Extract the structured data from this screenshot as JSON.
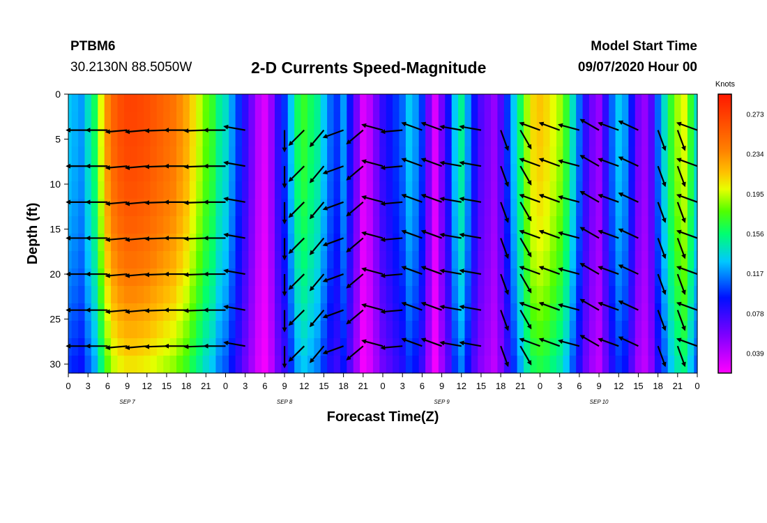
{
  "header": {
    "station": "PTBM6",
    "location": "30.2130N 88.5050W",
    "title": "2-D Currents Speed-Magnitude",
    "model_start_label": "Model Start Time",
    "model_start_value": "09/07/2020 Hour 00"
  },
  "chart_data": {
    "type": "heatmap",
    "title": "2-D Currents Speed-Magnitude",
    "xlabel": "Forecast Time(Z)",
    "ylabel": "Depth (ft)",
    "colorbar_label": "Knots",
    "colorbar_ticks": [
      "0.273",
      "0.234",
      "0.195",
      "0.156",
      "0.117",
      "0.078",
      "0.039"
    ],
    "colorbar_range": [
      0.0195,
      0.2925
    ],
    "x_hours_range": [
      0,
      96
    ],
    "x_tick_labels": [
      "0",
      "3",
      "6",
      "9",
      "12",
      "15",
      "18",
      "21",
      "0",
      "3",
      "6",
      "9",
      "12",
      "15",
      "18",
      "21",
      "0",
      "3",
      "6",
      "9",
      "12",
      "15",
      "18",
      "21",
      "0",
      "3",
      "6",
      "9",
      "12",
      "15",
      "18",
      "21",
      "0"
    ],
    "day_labels": [
      {
        "label": "SEP 7",
        "hour": 9
      },
      {
        "label": "SEP 8",
        "hour": 33
      },
      {
        "label": "SEP 9",
        "hour": 57
      },
      {
        "label": "SEP 10",
        "hour": 81
      }
    ],
    "ylim": [
      0,
      31
    ],
    "y_ticks": [
      0,
      5,
      10,
      15,
      20,
      25,
      30
    ],
    "speed_profile_hourly": [
      0.13,
      0.125,
      0.12,
      0.14,
      0.16,
      0.2,
      0.235,
      0.255,
      0.265,
      0.27,
      0.27,
      0.268,
      0.265,
      0.26,
      0.255,
      0.25,
      0.245,
      0.235,
      0.225,
      0.21,
      0.195,
      0.18,
      0.17,
      0.15,
      0.14,
      0.12,
      0.1,
      0.08,
      0.06,
      0.04,
      0.03,
      0.05,
      0.08,
      0.1,
      0.13,
      0.16,
      0.17,
      0.16,
      0.15,
      0.13,
      0.11,
      0.1,
      0.12,
      0.09,
      0.06,
      0.03,
      0.04,
      0.06,
      0.08,
      0.09,
      0.1,
      0.11,
      0.13,
      0.12,
      0.1,
      0.06,
      0.03,
      0.06,
      0.09,
      0.13,
      0.15,
      0.12,
      0.09,
      0.07,
      0.06,
      0.05,
      0.07,
      0.1,
      0.13,
      0.16,
      0.19,
      0.21,
      0.215,
      0.21,
      0.2,
      0.19,
      0.17,
      0.14,
      0.11,
      0.08,
      0.06,
      0.05,
      0.08,
      0.11,
      0.13,
      0.12,
      0.09,
      0.06,
      0.05,
      0.07,
      0.11,
      0.14,
      0.17,
      0.19,
      0.2,
      0.17,
      0.14
    ],
    "vector_hours": [
      3,
      6,
      9,
      12,
      15,
      18,
      21,
      24,
      27,
      33,
      36,
      39,
      42,
      45,
      48,
      51,
      54,
      57,
      60,
      63,
      66,
      69,
      72,
      75,
      78,
      81,
      84,
      87,
      90,
      93,
      96
    ],
    "vector_depths": [
      4,
      8,
      12,
      16,
      20,
      24,
      28
    ],
    "vector_dir_deg": [
      180,
      180,
      185,
      185,
      182,
      180,
      182,
      180,
      170,
      270,
      225,
      230,
      200,
      220,
      165,
      185,
      160,
      160,
      170,
      170,
      290,
      300,
      160,
      160,
      165,
      150,
      160,
      155,
      290,
      290,
      160
    ]
  }
}
